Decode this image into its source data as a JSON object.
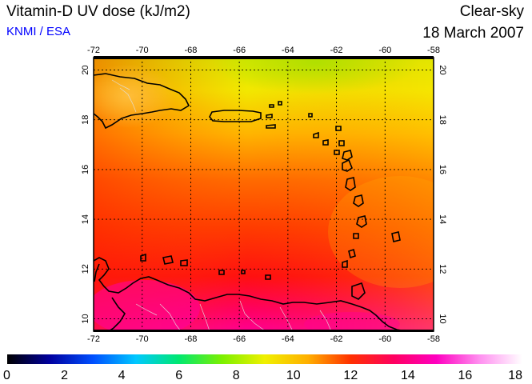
{
  "header": {
    "title": "Vitamin-D UV dose (kJ/m2)",
    "source": "KNMI / ESA",
    "condition": "Clear-sky",
    "date": "18 March 2007"
  },
  "map": {
    "lon_ticks": [
      "-72",
      "-70",
      "-68",
      "-66",
      "-64",
      "-62",
      "-60",
      "-58"
    ],
    "lat_ticks": [
      "10",
      "12",
      "14",
      "16",
      "18",
      "20"
    ],
    "lon_range": [
      -72,
      -58
    ],
    "lat_range": [
      9.5,
      20.5
    ],
    "coastline_color": "#000000",
    "grid": "dotted"
  },
  "colorbar": {
    "ticks": [
      "0",
      "2",
      "4",
      "6",
      "8",
      "10",
      "12",
      "14",
      "16",
      "18"
    ],
    "range": [
      0,
      18
    ],
    "stops": [
      "#000000",
      "#0000a0",
      "#0050ff",
      "#00c8ff",
      "#00e870",
      "#7cf000",
      "#f0f000",
      "#ffb000",
      "#ff3000",
      "#ff0060",
      "#ff00c0",
      "#ff90f0",
      "#ffffff"
    ]
  }
}
